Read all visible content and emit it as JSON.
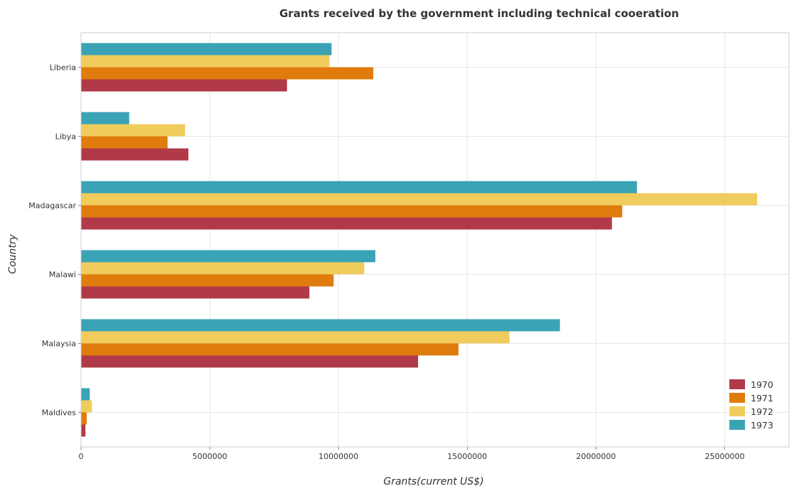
{
  "chart_data": {
    "type": "bar",
    "orientation": "horizontal",
    "title": "Grants received by the government including technical cooeration",
    "xlabel": "Grants(current US$)",
    "ylabel": "Country",
    "xlim": [
      0,
      27500000
    ],
    "x_ticks": [
      0,
      5000000,
      10000000,
      15000000,
      20000000,
      25000000
    ],
    "x_tick_labels": [
      "0",
      "5000000",
      "10000000",
      "15000000",
      "20000000",
      "25000000"
    ],
    "categories": [
      "Liberia",
      "Libya",
      "Madagascar",
      "Malawi",
      "Malaysia",
      "Maldives"
    ],
    "series": [
      {
        "name": "1970",
        "color": "#b03a48",
        "values": [
          8000000,
          4170000,
          20620000,
          8870000,
          13090000,
          170000
        ]
      },
      {
        "name": "1971",
        "color": "#e07b0e",
        "values": [
          11350000,
          3360000,
          21020000,
          9810000,
          14660000,
          220000
        ]
      },
      {
        "name": "1972",
        "color": "#f0cc5c",
        "values": [
          9650000,
          4040000,
          26260000,
          11000000,
          16640000,
          420000
        ]
      },
      {
        "name": "1973",
        "color": "#3aa3b5",
        "values": [
          9730000,
          1870000,
          21590000,
          11430000,
          18600000,
          340000
        ]
      }
    ],
    "grid": true,
    "legend_position": "bottom-right"
  }
}
